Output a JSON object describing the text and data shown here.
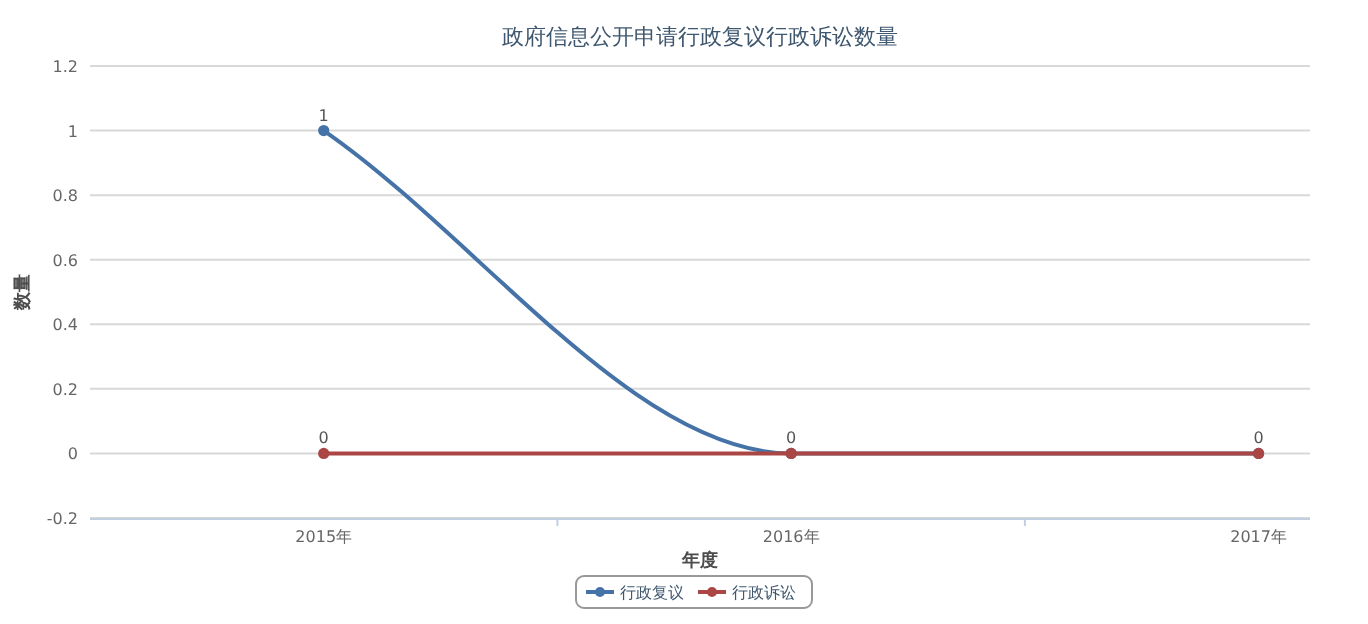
{
  "chart_data": {
    "type": "line",
    "title": "政府信息公开申请行政复议行政诉讼数量",
    "xlabel": "年度",
    "ylabel": "数量",
    "categories": [
      "2015年",
      "2016年",
      "2017年"
    ],
    "series": [
      {
        "name": "行政复议",
        "color": "#4572a7",
        "values": [
          1,
          0,
          0
        ],
        "value_labels": [
          "1",
          null,
          null
        ]
      },
      {
        "name": "行政诉讼",
        "color": "#aa4643",
        "values": [
          0,
          0,
          0
        ],
        "value_labels": [
          "0",
          "0",
          "0"
        ]
      }
    ],
    "ylim": [
      -0.2,
      1.2
    ],
    "yticks": [
      -0.2,
      0,
      0.2,
      0.4,
      0.6,
      0.8,
      1,
      1.2
    ],
    "grid": "y",
    "legend": "bottom",
    "marker": "circle"
  }
}
